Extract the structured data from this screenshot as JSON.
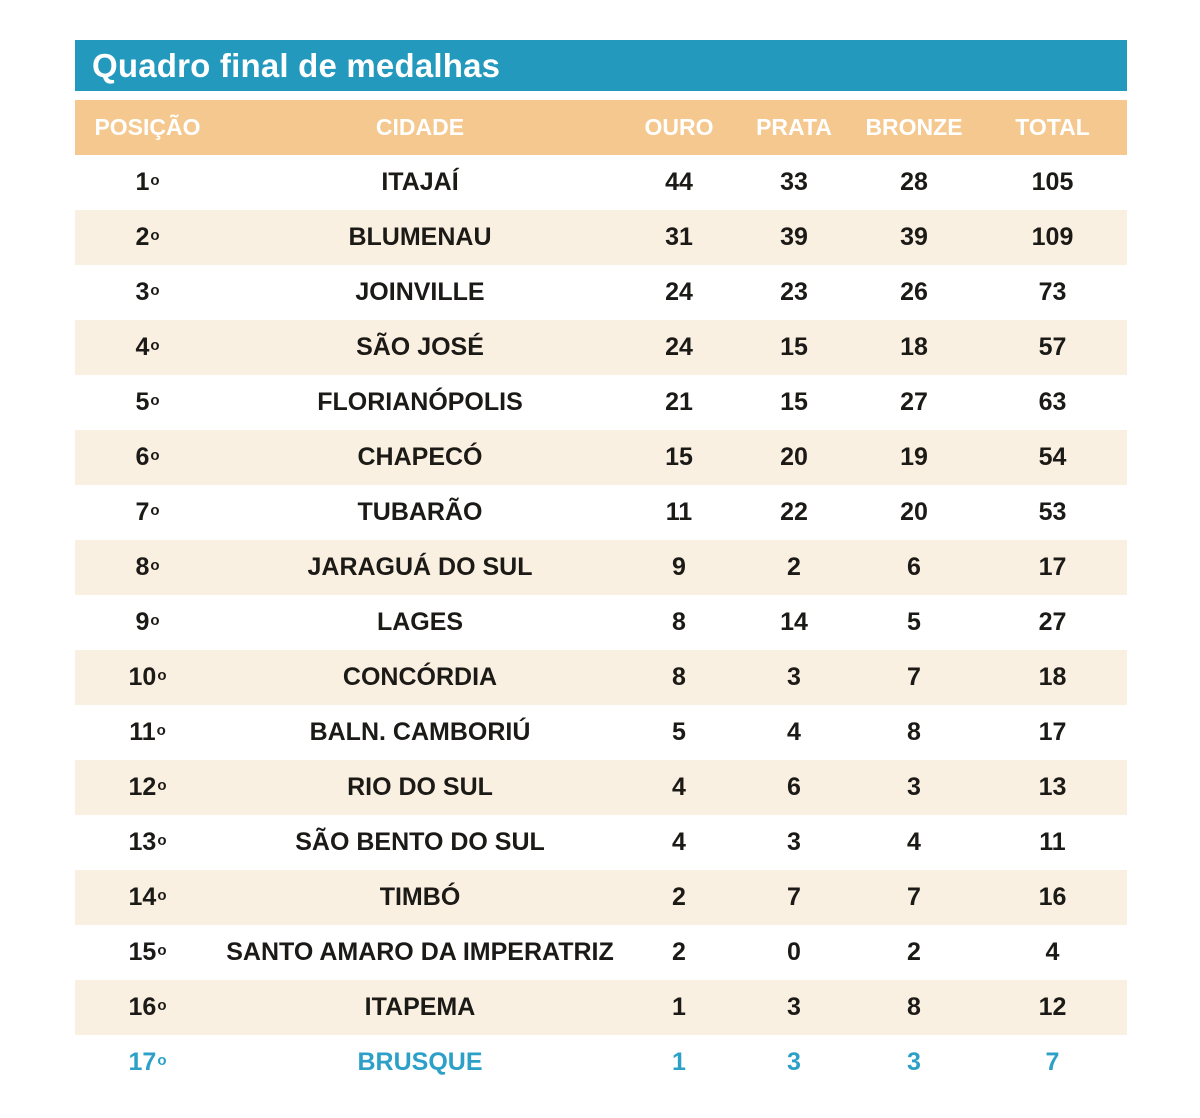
{
  "chart_data": {
    "type": "table",
    "title": "Quadro final de medalhas",
    "columns": [
      "POSIÇÃO",
      "CIDADE",
      "OURO",
      "PRATA",
      "BRONZE",
      "TOTAL"
    ],
    "rows": [
      {
        "position": "1",
        "city": "ITAJAÍ",
        "ouro": 44,
        "prata": 33,
        "bronze": 28,
        "total": 105,
        "highlight": false
      },
      {
        "position": "2",
        "city": "BLUMENAU",
        "ouro": 31,
        "prata": 39,
        "bronze": 39,
        "total": 109,
        "highlight": false
      },
      {
        "position": "3",
        "city": "JOINVILLE",
        "ouro": 24,
        "prata": 23,
        "bronze": 26,
        "total": 73,
        "highlight": false
      },
      {
        "position": "4",
        "city": "SÃO JOSÉ",
        "ouro": 24,
        "prata": 15,
        "bronze": 18,
        "total": 57,
        "highlight": false
      },
      {
        "position": "5",
        "city": "FLORIANÓPOLIS",
        "ouro": 21,
        "prata": 15,
        "bronze": 27,
        "total": 63,
        "highlight": false
      },
      {
        "position": "6",
        "city": "CHAPECÓ",
        "ouro": 15,
        "prata": 20,
        "bronze": 19,
        "total": 54,
        "highlight": false
      },
      {
        "position": "7",
        "city": "TUBARÃO",
        "ouro": 11,
        "prata": 22,
        "bronze": 20,
        "total": 53,
        "highlight": false
      },
      {
        "position": "8",
        "city": "JARAGUÁ DO SUL",
        "ouro": 9,
        "prata": 2,
        "bronze": 6,
        "total": 17,
        "highlight": false
      },
      {
        "position": "9",
        "city": "LAGES",
        "ouro": 8,
        "prata": 14,
        "bronze": 5,
        "total": 27,
        "highlight": false
      },
      {
        "position": "10",
        "city": "CONCÓRDIA",
        "ouro": 8,
        "prata": 3,
        "bronze": 7,
        "total": 18,
        "highlight": false
      },
      {
        "position": "11",
        "city": "BALN. CAMBORIÚ",
        "ouro": 5,
        "prata": 4,
        "bronze": 8,
        "total": 17,
        "highlight": false
      },
      {
        "position": "12",
        "city": "RIO DO SUL",
        "ouro": 4,
        "prata": 6,
        "bronze": 3,
        "total": 13,
        "highlight": false
      },
      {
        "position": "13",
        "city": "SÃO BENTO DO SUL",
        "ouro": 4,
        "prata": 3,
        "bronze": 4,
        "total": 11,
        "highlight": false
      },
      {
        "position": "14",
        "city": "TIMBÓ",
        "ouro": 2,
        "prata": 7,
        "bronze": 7,
        "total": 16,
        "highlight": false
      },
      {
        "position": "15",
        "city": "SANTO AMARO DA IMPERATRIZ",
        "ouro": 2,
        "prata": 0,
        "bronze": 2,
        "total": 4,
        "highlight": false
      },
      {
        "position": "16",
        "city": "ITAPEMA",
        "ouro": 1,
        "prata": 3,
        "bronze": 8,
        "total": 12,
        "highlight": false
      },
      {
        "position": "17",
        "city": "BRUSQUE",
        "ouro": 1,
        "prata": 3,
        "bronze": 3,
        "total": 7,
        "highlight": true
      }
    ],
    "ordinal_mark": "o",
    "highlighted_city": "BRUSQUE",
    "layout": {
      "striped": true,
      "stripe_pattern": "even-rows-peach"
    },
    "colors": {
      "title_bar_bg": "#2299bd",
      "title_text": "#ffffff",
      "header_bg": "#f4c88e",
      "header_text": "#ffffff",
      "row_bg": "#ffffff",
      "row_stripe_bg": "#faf0e2",
      "body_text": "#1c1a17",
      "highlight_text": "#2da0c8"
    }
  }
}
